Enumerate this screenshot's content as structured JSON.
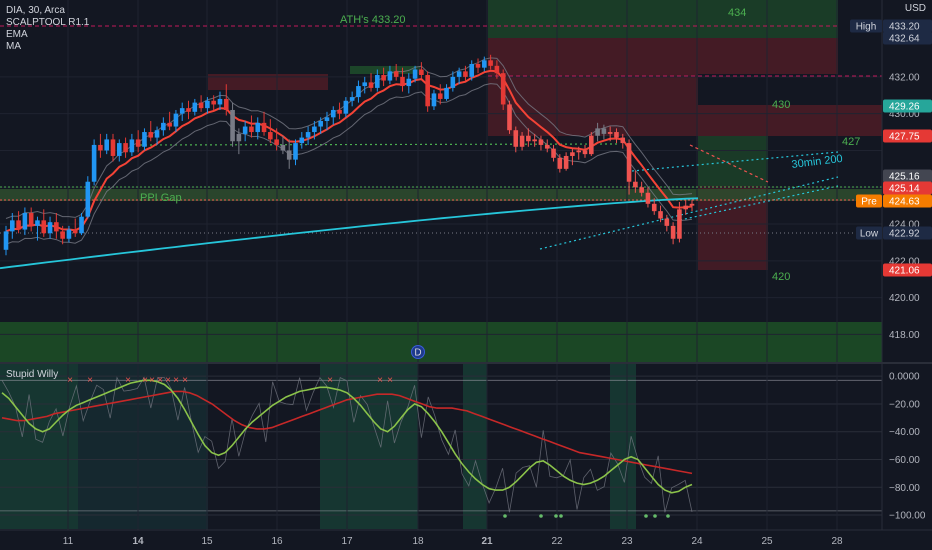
{
  "header": {
    "symbol_line": "DIA, 30, Arca",
    "indicators": [
      "SCALPTOOL R1.1",
      "EMA",
      "MA"
    ],
    "currency": "USD"
  },
  "chart_data": [
    {
      "type": "candlestick",
      "name": "price-panel",
      "ylim": [
        416.5,
        435.2
      ],
      "yticks": [
        418,
        420,
        422,
        424,
        426,
        428,
        430,
        432
      ],
      "ytick_labels": [
        "418.00",
        "420.00",
        "422.00",
        "424.00",
        "",
        "",
        "430.00",
        "432.00"
      ],
      "xtick_labels": [
        "11",
        "14",
        "15",
        "16",
        "17",
        "18",
        "21",
        "22",
        "23",
        "24",
        "25",
        "28"
      ],
      "xtick_bold": [
        "14",
        "21"
      ],
      "price_tags": [
        {
          "label": "High",
          "value": "433.20",
          "y": 433.2,
          "style": "dark"
        },
        {
          "label": "",
          "value": "432.64",
          "y": 432.64,
          "style": "dark"
        },
        {
          "label": "",
          "value": "429.26",
          "y": 429.26,
          "style": "green"
        },
        {
          "label": "",
          "value": "427.75",
          "y": 427.75,
          "style": "red"
        },
        {
          "label": "",
          "value": "425.16",
          "y": 425.16,
          "style": "gray"
        },
        {
          "label": "",
          "value": "425.14",
          "y": 425.14,
          "style": "red"
        },
        {
          "label": "Pre",
          "value": "424.63",
          "y": 424.63,
          "style": "orange"
        },
        {
          "label": "Low",
          "value": "422.92",
          "y": 422.92,
          "style": "dark"
        },
        {
          "label": "",
          "value": "421.06",
          "y": 421.06,
          "style": "red"
        }
      ],
      "annotations": [
        {
          "text": "ATH's 433.20",
          "color": "#4caf50"
        },
        {
          "text": "PPI Gap",
          "color": "#4caf50"
        },
        {
          "text": "434",
          "color": "#4caf50"
        },
        {
          "text": "430",
          "color": "#4caf50"
        },
        {
          "text": "427",
          "color": "#4caf50"
        },
        {
          "text": "420",
          "color": "#4caf50"
        },
        {
          "text": "30min 200",
          "color": "#26c6da"
        }
      ],
      "marker": "D",
      "candles": [
        [
          422.6,
          423.9,
          422.3,
          423.6
        ],
        [
          423.6,
          424.6,
          423.2,
          424.2
        ],
        [
          424.2,
          424.7,
          423.5,
          423.7
        ],
        [
          423.7,
          424.9,
          423.4,
          424.6
        ],
        [
          424.6,
          424.9,
          423.6,
          423.9
        ],
        [
          423.9,
          424.4,
          423.1,
          424.2
        ],
        [
          424.2,
          424.8,
          423.3,
          423.5
        ],
        [
          423.5,
          424.4,
          423.2,
          424.1
        ],
        [
          424.1,
          424.6,
          423.2,
          423.6
        ],
        [
          423.6,
          423.9,
          422.9,
          423.2
        ],
        [
          423.2,
          423.9,
          423.0,
          423.7
        ],
        [
          423.7,
          424.3,
          423.3,
          423.5
        ],
        [
          423.5,
          424.6,
          423.4,
          424.4
        ],
        [
          424.4,
          426.6,
          424.3,
          426.3
        ],
        [
          426.3,
          428.6,
          426.1,
          428.3
        ],
        [
          428.3,
          428.9,
          427.6,
          428.0
        ],
        [
          428.0,
          428.9,
          427.8,
          428.6
        ],
        [
          428.6,
          428.9,
          427.4,
          427.7
        ],
        [
          427.7,
          428.6,
          427.4,
          428.4
        ],
        [
          428.4,
          428.7,
          427.6,
          427.9
        ],
        [
          427.9,
          428.9,
          427.7,
          428.6
        ],
        [
          428.6,
          429.1,
          427.9,
          428.2
        ],
        [
          428.2,
          429.2,
          428.0,
          429.0
        ],
        [
          429.0,
          429.6,
          428.5,
          428.7
        ],
        [
          428.7,
          429.3,
          428.3,
          429.1
        ],
        [
          429.1,
          429.8,
          428.8,
          429.5
        ],
        [
          429.5,
          430.1,
          429.1,
          429.3
        ],
        [
          429.3,
          430.2,
          429.0,
          430.0
        ],
        [
          430.0,
          430.6,
          429.6,
          430.3
        ],
        [
          430.3,
          430.7,
          429.7,
          430.1
        ],
        [
          430.1,
          430.8,
          429.9,
          430.6
        ],
        [
          430.6,
          431.0,
          430.1,
          430.3
        ],
        [
          430.3,
          430.9,
          430.0,
          430.7
        ],
        [
          430.7,
          431.0,
          430.2,
          430.5
        ],
        [
          430.5,
          431.2,
          430.2,
          430.8
        ],
        [
          430.8,
          431.6,
          429.9,
          430.2
        ],
        [
          430.2,
          430.6,
          428.2,
          428.5
        ],
        [
          428.5,
          429.2,
          427.8,
          428.9
        ],
        [
          428.9,
          429.6,
          428.5,
          429.3
        ],
        [
          429.3,
          429.9,
          428.7,
          429.0
        ],
        [
          429.0,
          429.8,
          428.6,
          429.5
        ],
        [
          429.5,
          430.1,
          428.8,
          429.0
        ],
        [
          429.0,
          429.7,
          428.4,
          428.6
        ],
        [
          428.6,
          429.2,
          428.0,
          428.3
        ],
        [
          428.3,
          428.8,
          427.8,
          428.0
        ],
        [
          428.0,
          428.6,
          427.0,
          427.5
        ],
        [
          427.5,
          428.6,
          427.2,
          428.4
        ],
        [
          428.4,
          429.0,
          428.1,
          428.7
        ],
        [
          428.7,
          429.3,
          428.3,
          429.0
        ],
        [
          429.0,
          429.6,
          428.6,
          429.3
        ],
        [
          429.3,
          429.8,
          428.9,
          429.6
        ],
        [
          429.6,
          430.1,
          429.1,
          429.8
        ],
        [
          429.8,
          430.4,
          429.4,
          430.2
        ],
        [
          430.2,
          430.6,
          429.7,
          430.0
        ],
        [
          430.0,
          430.9,
          429.8,
          430.7
        ],
        [
          430.7,
          431.2,
          430.4,
          430.9
        ],
        [
          430.9,
          431.8,
          430.6,
          431.5
        ],
        [
          431.5,
          432.0,
          431.1,
          431.7
        ],
        [
          431.7,
          432.2,
          431.2,
          431.4
        ],
        [
          431.4,
          432.4,
          431.2,
          432.1
        ],
        [
          432.1,
          432.5,
          431.5,
          431.8
        ],
        [
          431.8,
          432.6,
          431.6,
          432.3
        ],
        [
          432.3,
          432.7,
          431.8,
          432.0
        ],
        [
          432.0,
          432.5,
          431.2,
          431.5
        ],
        [
          431.5,
          432.2,
          431.1,
          431.9
        ],
        [
          431.9,
          432.6,
          431.7,
          432.4
        ],
        [
          432.4,
          432.8,
          431.9,
          432.1
        ],
        [
          432.1,
          432.3,
          430.1,
          430.4
        ],
        [
          430.4,
          431.3,
          430.2,
          431.1
        ],
        [
          431.1,
          431.6,
          430.5,
          430.8
        ],
        [
          430.8,
          431.6,
          430.7,
          431.4
        ],
        [
          431.4,
          432.3,
          431.2,
          432.0
        ],
        [
          432.0,
          432.5,
          431.6,
          432.3
        ],
        [
          432.3,
          432.6,
          431.8,
          432.0
        ],
        [
          432.0,
          432.9,
          431.8,
          432.7
        ],
        [
          432.7,
          433.0,
          432.2,
          432.5
        ],
        [
          432.5,
          433.1,
          432.3,
          432.9
        ],
        [
          432.9,
          433.2,
          432.4,
          432.6
        ],
        [
          432.6,
          432.9,
          431.9,
          432.2
        ],
        [
          432.2,
          432.4,
          430.2,
          430.5
        ],
        [
          430.5,
          430.7,
          428.9,
          429.1
        ],
        [
          429.1,
          429.3,
          427.9,
          428.2
        ],
        [
          428.2,
          429.0,
          428.0,
          428.8
        ],
        [
          428.8,
          429.2,
          428.2,
          428.5
        ],
        [
          428.5,
          428.9,
          428.2,
          428.6
        ],
        [
          428.6,
          428.8,
          428.0,
          428.3
        ],
        [
          428.3,
          428.6,
          427.9,
          428.1
        ],
        [
          428.1,
          428.3,
          427.4,
          427.6
        ],
        [
          427.6,
          427.8,
          426.8,
          427.0
        ],
        [
          427.0,
          427.9,
          426.9,
          427.7
        ],
        [
          427.7,
          428.1,
          427.2,
          427.9
        ],
        [
          427.9,
          428.2,
          427.5,
          428.0
        ],
        [
          428.0,
          428.3,
          427.6,
          427.8
        ],
        [
          427.8,
          429.0,
          427.7,
          428.8
        ],
        [
          428.8,
          429.5,
          428.5,
          429.2
        ],
        [
          429.2,
          429.4,
          428.6,
          428.9
        ],
        [
          428.9,
          429.3,
          428.5,
          429.0
        ],
        [
          429.0,
          429.2,
          428.4,
          428.7
        ],
        [
          428.7,
          428.9,
          428.1,
          428.4
        ],
        [
          428.4,
          428.6,
          425.6,
          426.3
        ],
        [
          426.3,
          426.9,
          425.7,
          426.0
        ],
        [
          426.0,
          426.3,
          425.5,
          425.7
        ],
        [
          425.7,
          426.0,
          424.9,
          425.1
        ],
        [
          425.1,
          425.4,
          424.5,
          424.7
        ],
        [
          424.7,
          425.0,
          424.1,
          424.3
        ],
        [
          424.3,
          424.5,
          423.6,
          423.9
        ],
        [
          423.9,
          424.1,
          422.9,
          423.2
        ],
        [
          423.2,
          425.2,
          423.0,
          424.8
        ],
        [
          424.8,
          425.3,
          424.5,
          425.0
        ],
        [
          425.0,
          425.3,
          424.7,
          425.1
        ]
      ]
    },
    {
      "type": "line",
      "name": "oscillator-panel",
      "title": "Stupid Willy",
      "ylim": [
        -105,
        3
      ],
      "yticks": [
        0,
        -20,
        -40,
        -60,
        -80,
        -100
      ],
      "ytick_labels": [
        "0.0000",
        "−20.00",
        "−40.00",
        "−60.00",
        "−80.00",
        "−100.00"
      ],
      "series": [
        {
          "values": [
            -12,
            -16,
            -22,
            -28,
            -34,
            -38,
            -40,
            -38,
            -33,
            -28,
            -24,
            -21,
            -19,
            -17,
            -15,
            -13,
            -11,
            -9,
            -7,
            -5,
            -4,
            -3,
            -3,
            -4,
            -6,
            -10,
            -16,
            -24,
            -33,
            -42,
            -50,
            -55,
            -57,
            -55,
            -50,
            -44,
            -38,
            -33,
            -29,
            -25,
            -21,
            -18,
            -15,
            -13,
            -11,
            -10,
            -9,
            -8,
            -8,
            -9,
            -10,
            -12,
            -16,
            -21,
            -27,
            -33,
            -38,
            -40,
            -36,
            -30,
            -24,
            -20,
            -22,
            -27,
            -33,
            -40,
            -48,
            -56,
            -63,
            -69,
            -74,
            -78,
            -81,
            -82,
            -82,
            -80,
            -76,
            -71,
            -66,
            -62,
            -61,
            -64,
            -68,
            -72,
            -75,
            -77,
            -78,
            -77,
            -75,
            -72,
            -68,
            -64,
            -60,
            -58,
            -60,
            -66,
            -72,
            -78,
            -82,
            -84,
            -83,
            -80,
            -78
          ]
        },
        {
          "values": [
            -30,
            -31,
            -32,
            -32,
            -31,
            -30,
            -29,
            -27,
            -26,
            -25,
            -24,
            -23,
            -22,
            -21,
            -20,
            -19,
            -18,
            -17,
            -16,
            -15,
            -14,
            -13,
            -12,
            -11,
            -11,
            -12,
            -14,
            -17,
            -20,
            -24,
            -28,
            -32,
            -35,
            -37,
            -38,
            -38,
            -37,
            -35,
            -33,
            -31,
            -29,
            -27,
            -25,
            -23,
            -21,
            -19,
            -17,
            -16,
            -15,
            -14,
            -13,
            -13,
            -13,
            -14,
            -16,
            -18,
            -20,
            -22,
            -23,
            -23,
            -23,
            -24,
            -25,
            -27,
            -29,
            -31,
            -33,
            -35,
            -37,
            -39,
            -41,
            -43,
            -45,
            -47,
            -49,
            -51,
            -53,
            -55,
            -56,
            -57,
            -58,
            -59,
            -60,
            -61,
            -62,
            -63,
            -64,
            -65,
            -66,
            -67,
            -68,
            -69,
            -70
          ]
        }
      ]
    }
  ]
}
